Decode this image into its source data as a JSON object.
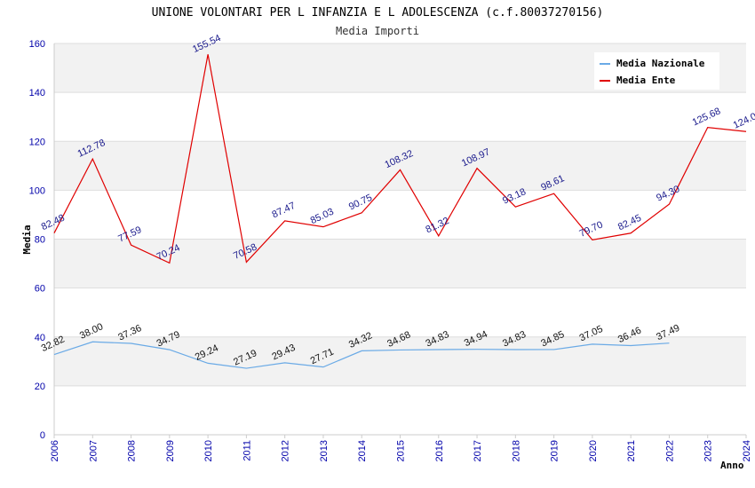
{
  "chart_data": {
    "type": "line",
    "title": "UNIONE VOLONTARI PER L INFANZIA E L ADOLESCENZA (c.f.80037270156)",
    "subtitle": "Media Importi",
    "xlabel": "Anno",
    "ylabel": "Media",
    "ylim": [
      0,
      160
    ],
    "yticks": [
      0,
      20,
      40,
      60,
      80,
      100,
      120,
      140,
      160
    ],
    "grid": true,
    "legend_position": "top-right",
    "x": [
      "2006",
      "2007",
      "2008",
      "2009",
      "2010",
      "2011",
      "2012",
      "2013",
      "2014",
      "2015",
      "2016",
      "2017",
      "2018",
      "2019",
      "2020",
      "2021",
      "2022",
      "2023",
      "2024"
    ],
    "series": [
      {
        "name": "Media Nazionale",
        "color": "#6aaae6",
        "values": [
          32.82,
          38.0,
          37.36,
          34.79,
          29.24,
          27.19,
          29.43,
          27.71,
          34.32,
          34.68,
          34.83,
          34.94,
          34.83,
          34.85,
          37.05,
          36.46,
          37.49,
          null,
          null
        ],
        "labels": [
          "32.82",
          "38.00",
          "37.36",
          "34.79",
          "29.24",
          "27.19",
          "29.43",
          "27.71",
          "34.32",
          "34.68",
          "34.83",
          "34.94",
          "34.83",
          "34.85",
          "37.05",
          "36.46",
          "37.49",
          null,
          null
        ]
      },
      {
        "name": "Media Ente",
        "color": "#e00000",
        "values": [
          82.48,
          112.78,
          77.59,
          70.24,
          155.54,
          70.58,
          87.47,
          85.03,
          90.75,
          108.32,
          81.32,
          108.97,
          93.18,
          98.61,
          79.7,
          82.45,
          94.3,
          125.68,
          124.0
        ],
        "labels": [
          "82.48",
          "112.78",
          "77.59",
          "70.24",
          "155.54",
          "70.58",
          "87.47",
          "85.03",
          "90.75",
          "108.32",
          "81.32",
          "108.97",
          "93.18",
          "98.61",
          "79.70",
          "82.45",
          "94.30",
          "125.68",
          "124.0"
        ]
      }
    ]
  }
}
